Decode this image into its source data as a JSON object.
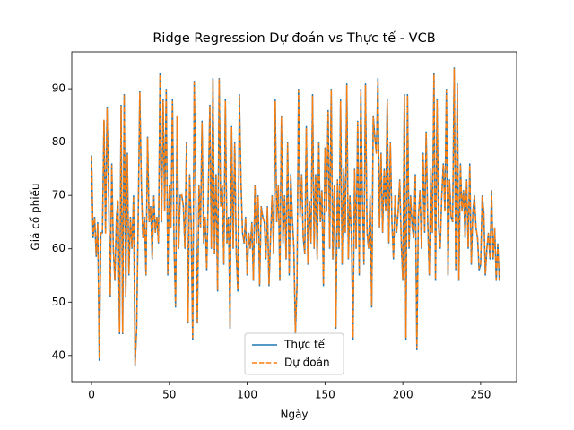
{
  "chart_data": {
    "type": "line",
    "title": "Ridge Regression Dự đoán vs Thực tế - VCB",
    "xlabel": "Ngày",
    "ylabel": "Giá cổ phiếu",
    "x": [
      0,
      1,
      2,
      3,
      4,
      5,
      6,
      7,
      8,
      9,
      10,
      11,
      12,
      13,
      14,
      15,
      16,
      17,
      18,
      19,
      20,
      21,
      22,
      23,
      24,
      25,
      26,
      27,
      28,
      29,
      30,
      31,
      32,
      33,
      34,
      35,
      36,
      37,
      38,
      39,
      40,
      41,
      42,
      43,
      44,
      45,
      46,
      47,
      48,
      49,
      50,
      51,
      52,
      53,
      54,
      55,
      56,
      57,
      58,
      59,
      60,
      61,
      62,
      63,
      64,
      65,
      66,
      67,
      68,
      69,
      70,
      71,
      72,
      73,
      74,
      75,
      76,
      77,
      78,
      79,
      80,
      81,
      82,
      83,
      84,
      85,
      86,
      87,
      88,
      89,
      90,
      91,
      92,
      93,
      94,
      95,
      96,
      97,
      98,
      99,
      100,
      101,
      102,
      103,
      104,
      105,
      106,
      107,
      108,
      109,
      110,
      111,
      112,
      113,
      114,
      115,
      116,
      117,
      118,
      119,
      120,
      121,
      122,
      123,
      124,
      125,
      126,
      127,
      128,
      129,
      130,
      131,
      132,
      133,
      134,
      135,
      136,
      137,
      138,
      139,
      140,
      141,
      142,
      143,
      144,
      145,
      146,
      147,
      148,
      149,
      150,
      151,
      152,
      153,
      154,
      155,
      156,
      157,
      158,
      159,
      160,
      161,
      162,
      163,
      164,
      165,
      166,
      167,
      168,
      169,
      170,
      171,
      172,
      173,
      174,
      175,
      176,
      177,
      178,
      179,
      180,
      181,
      182,
      183,
      184,
      185,
      186,
      187,
      188,
      189,
      190,
      191,
      192,
      193,
      194,
      195,
      196,
      197,
      198,
      199,
      200,
      201,
      202,
      203,
      204,
      205,
      206,
      207,
      208,
      209,
      210,
      211,
      212,
      213,
      214,
      215,
      216,
      217,
      218,
      219,
      220,
      221,
      222,
      223,
      224,
      225,
      226,
      227,
      228,
      229,
      230,
      231,
      232,
      233,
      234,
      235,
      236,
      237,
      238,
      239,
      240,
      241,
      242,
      243,
      244,
      245,
      246,
      247,
      248,
      249,
      250,
      251,
      252,
      253,
      254,
      255,
      256,
      257,
      258,
      259,
      260,
      261,
      262
    ],
    "series": [
      {
        "name": "Thực tế",
        "color": "#1f77b4",
        "dash": false,
        "values": [
          77.5,
          62,
          66,
          58.5,
          65,
          39,
          63,
          63,
          84,
          63,
          86.5,
          70,
          51,
          76,
          60,
          54,
          66,
          69,
          44,
          87,
          44,
          89,
          51,
          78,
          55,
          66,
          60,
          70,
          38,
          45,
          66,
          89.5,
          72,
          62,
          66,
          55,
          81,
          65,
          68,
          58,
          70,
          63,
          66,
          61,
          93,
          65,
          88,
          67,
          90,
          55,
          72,
          64,
          88,
          61,
          49,
          85,
          60,
          70,
          70,
          68,
          60,
          80,
          46,
          74,
          65,
          43,
          91.5,
          70,
          46,
          72,
          64,
          84,
          61,
          66,
          56,
          70,
          87,
          60,
          92,
          59,
          74,
          52,
          92,
          68,
          72,
          57,
          88,
          61,
          66,
          45,
          83,
          60,
          80,
          59,
          52,
          89,
          73,
          63,
          61,
          66,
          55,
          63,
          60,
          65,
          54,
          72,
          61,
          70,
          53,
          68,
          66,
          65,
          58,
          68,
          53,
          62,
          70,
          59,
          88,
          65,
          72,
          54,
          85,
          61,
          70,
          58,
          80,
          55,
          74,
          66,
          60,
          44,
          53,
          90,
          66,
          74,
          62,
          59,
          83,
          57,
          69,
          61,
          89,
          60,
          74,
          58,
          80,
          65,
          71,
          53,
          79,
          67,
          86,
          60,
          90,
          58,
          72,
          45,
          73,
          60,
          88,
          57,
          75,
          63,
          91,
          58,
          70,
          62,
          43,
          75,
          60,
          84,
          55,
          90,
          70,
          57,
          91,
          63,
          60,
          70,
          49,
          85,
          81,
          78,
          92,
          64,
          78,
          63,
          75,
          67,
          88,
          61,
          80,
          65,
          58,
          70,
          63,
          67,
          73,
          61,
          54,
          89,
          43,
          89,
          60,
          70,
          64,
          62,
          74,
          41,
          66,
          71,
          60,
          78,
          63,
          82,
          65,
          55,
          75,
          63,
          93,
          54,
          88,
          64,
          60,
          70,
          76,
          67,
          90,
          55,
          73,
          66,
          65,
          94,
          56,
          91,
          54,
          76,
          67,
          71,
          62,
          73,
          60,
          76,
          57,
          67,
          70,
          64,
          62,
          56,
          57,
          70,
          67,
          55,
          60,
          63,
          58,
          71,
          58,
          64,
          54,
          61,
          54
        ]
      },
      {
        "name": "Dự đoán",
        "color": "#ff7f0e",
        "dash": true,
        "values": [
          77.3,
          62.3,
          65.8,
          58.8,
          64.7,
          39.4,
          62.8,
          63.2,
          84.2,
          62.7,
          86.3,
          70.2,
          51.3,
          75.7,
          60.2,
          54.3,
          65.8,
          69.2,
          44.3,
          86.8,
          44.2,
          88.8,
          51.2,
          77.7,
          55.3,
          65.8,
          60.2,
          69.8,
          38.3,
          45.2,
          65.8,
          89.3,
          72.2,
          62.1,
          65.8,
          55.2,
          80.8,
          65.1,
          67.8,
          58.3,
          69.8,
          63.1,
          65.9,
          61.2,
          92.7,
          65.2,
          87.8,
          67.1,
          89.8,
          55.3,
          71.8,
          64.1,
          87.7,
          61.2,
          49.3,
          84.8,
          60.2,
          69.9,
          70.1,
          67.8,
          60.2,
          79.7,
          46.3,
          73.8,
          65.1,
          43.3,
          91.2,
          69.8,
          46.3,
          71.8,
          64.1,
          83.7,
          61.2,
          65.9,
          56.2,
          69.8,
          86.8,
          60.2,
          91.7,
          59.2,
          73.8,
          52.3,
          91.8,
          67.9,
          71.8,
          57.2,
          87.7,
          61.1,
          65.8,
          45.3,
          82.8,
          60.2,
          79.7,
          59.2,
          52.3,
          88.7,
          72.8,
          63.1,
          61.1,
          65.8,
          55.2,
          62.9,
          60.1,
          64.8,
          54.2,
          71.8,
          61.1,
          69.8,
          53.3,
          67.9,
          65.8,
          65.1,
          58.2,
          67.8,
          53.3,
          62.1,
          69.8,
          59.2,
          87.7,
          65.1,
          71.8,
          54.3,
          84.7,
          61.2,
          69.8,
          58.2,
          79.8,
          55.3,
          73.8,
          65.9,
          60.1,
          44.3,
          53.2,
          89.7,
          65.9,
          73.8,
          62.1,
          59.2,
          82.7,
          57.2,
          68.8,
          61.1,
          88.7,
          60.2,
          73.8,
          58.2,
          79.8,
          65.1,
          70.8,
          53.3,
          78.8,
          66.9,
          85.7,
          60.2,
          89.7,
          58.2,
          71.8,
          45.3,
          72.8,
          60.2,
          87.7,
          57.2,
          74.8,
          63.1,
          90.7,
          58.2,
          69.8,
          62.1,
          43.3,
          74.8,
          60.2,
          83.8,
          55.2,
          89.7,
          69.9,
          57.2,
          90.7,
          63.1,
          60.1,
          69.8,
          49.3,
          84.7,
          80.8,
          77.8,
          91.7,
          64.1,
          77.8,
          63.1,
          74.8,
          66.9,
          87.7,
          61.2,
          79.8,
          65.1,
          58.2,
          69.9,
          63.1,
          66.9,
          72.8,
          61.1,
          54.3,
          88.7,
          43.3,
          88.7,
          60.2,
          69.8,
          64.1,
          62.1,
          73.8,
          41.3,
          65.9,
          70.8,
          60.2,
          77.8,
          63.1,
          81.8,
          65.1,
          55.2,
          74.8,
          63.1,
          92.7,
          54.3,
          87.8,
          64.1,
          60.2,
          69.8,
          75.8,
          67.1,
          89.7,
          55.2,
          72.8,
          66.1,
          65.1,
          93.8,
          56.3,
          90.7,
          54.3,
          75.8,
          67.1,
          70.8,
          62.2,
          72.8,
          60.3,
          75.7,
          57.2,
          66.8,
          69.8,
          64.1,
          62.1,
          56.3,
          57.2,
          69.8,
          66.9,
          55.3,
          60.1,
          62.9,
          58.2,
          70.8,
          58.2,
          63.8,
          54.2,
          60.8,
          54.2
        ]
      }
    ],
    "xlim": [
      -12.7,
      273.1
    ],
    "ylim": [
      35.1,
      96.9
    ],
    "xticks": [
      0,
      50,
      100,
      150,
      200,
      250
    ],
    "yticks": [
      40,
      50,
      60,
      70,
      80,
      90
    ],
    "legend": "lower center"
  }
}
